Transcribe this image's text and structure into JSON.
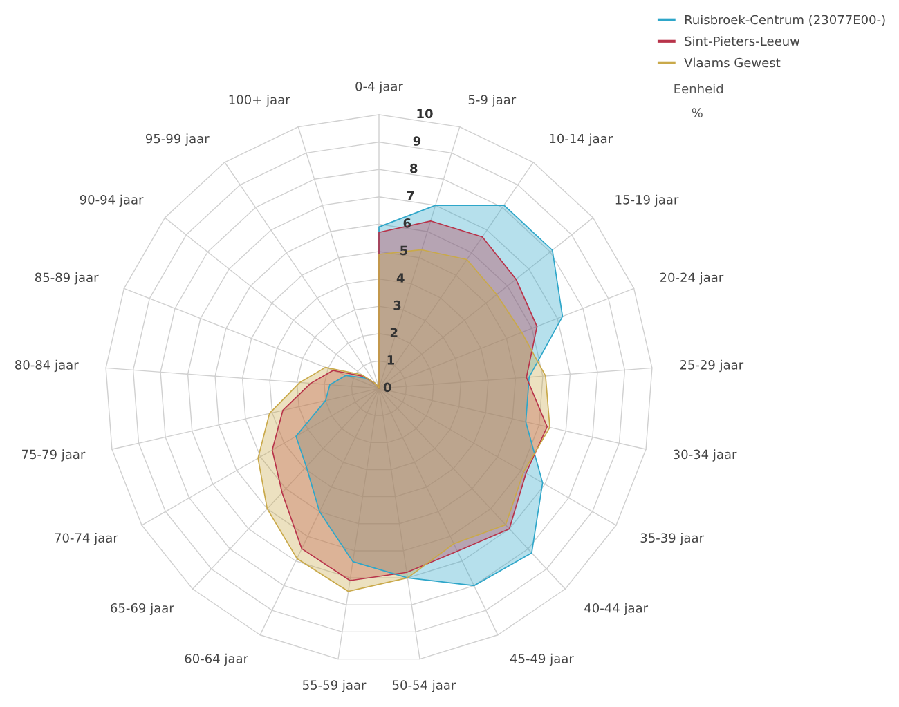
{
  "chart_data": {
    "type": "radar",
    "categories": [
      "0-4 jaar",
      "5-9 jaar",
      "10-14 jaar",
      "15-19 jaar",
      "20-24 jaar",
      "25-29 jaar",
      "30-34 jaar",
      "35-39 jaar",
      "40-44 jaar",
      "45-49 jaar",
      "50-54 jaar",
      "55-59 jaar",
      "60-64 jaar",
      "65-69 jaar",
      "70-74 jaar",
      "75-79 jaar",
      "80-84 jaar",
      "85-89 jaar",
      "90-94 jaar",
      "95-99 jaar",
      "100+ jaar"
    ],
    "series": [
      {
        "name": "Ruisbroek-Centrum (23077E00-)",
        "color": "#2ea6c9",
        "values": [
          5.9,
          7.0,
          8.1,
          8.1,
          7.2,
          5.5,
          5.5,
          6.9,
          8.2,
          8.0,
          7.0,
          6.4,
          5.0,
          3.9,
          3.5,
          2.0,
          1.8,
          1.3,
          0.6,
          0.2,
          0.0
        ]
      },
      {
        "name": "Sint-Pieters-Leeuw",
        "color": "#b8334a",
        "values": [
          5.7,
          6.4,
          6.7,
          6.4,
          6.2,
          5.4,
          6.3,
          6.2,
          7.0,
          6.6,
          6.8,
          7.1,
          6.5,
          5.2,
          4.5,
          3.6,
          2.5,
          1.8,
          0.7,
          0.2,
          0.0
        ]
      },
      {
        "name": "Vlaams Gewest",
        "color": "#c9a94a",
        "values": [
          4.9,
          5.3,
          5.7,
          5.5,
          5.6,
          6.1,
          6.4,
          6.1,
          6.8,
          6.3,
          7.0,
          7.5,
          6.9,
          6.0,
          5.1,
          4.1,
          2.9,
          2.1,
          0.8,
          0.2,
          0.0
        ]
      }
    ],
    "ylim": [
      0,
      10
    ],
    "yticks": [
      0,
      1,
      2,
      3,
      4,
      5,
      6,
      7,
      8,
      9,
      10
    ],
    "grid": true,
    "legend": "top right",
    "annotations": [
      "Eenheid",
      "%"
    ]
  }
}
